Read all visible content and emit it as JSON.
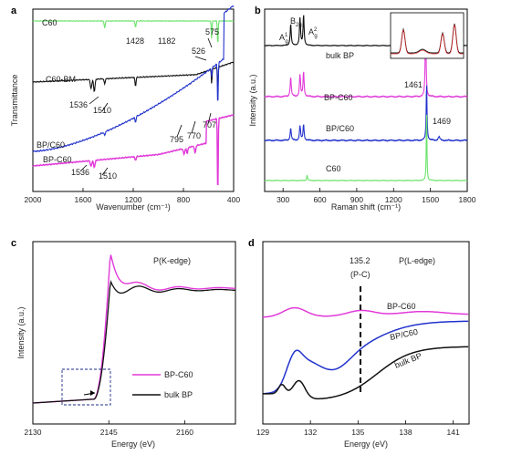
{
  "chart_data": [
    {
      "id": "a",
      "type": "line",
      "panel_label": "a",
      "xlabel": "Wavenumber (cm⁻¹)",
      "ylabel": "Transmittance",
      "xlim": [
        2000,
        400
      ],
      "x_ticks": [
        "2000",
        "1600",
        "1200",
        "800",
        "400"
      ],
      "series": [
        {
          "name": "C60",
          "color": "#6be36b",
          "offset": 0.93,
          "style": "ftir_c60"
        },
        {
          "name": "C60-BM",
          "color": "#111111",
          "offset": 0.66,
          "style": "ftir_bm"
        },
        {
          "name": "BP/C60",
          "color": "#2233cc",
          "offset": 0.33,
          "style": "ftir_bpc"
        },
        {
          "name": "BP-C60",
          "color": "#e13ad9",
          "offset": 0.17,
          "style": "ftir_bpcov"
        }
      ],
      "annotations": [
        "1428",
        "1182",
        "575",
        "526",
        "1536",
        "1510",
        "795",
        "770",
        "707",
        "1536",
        "1510"
      ]
    },
    {
      "id": "b",
      "type": "line",
      "panel_label": "b",
      "xlabel": "Raman shift (cm⁻¹)",
      "ylabel": "Intensity (a.u.)",
      "xlim": [
        150,
        1800
      ],
      "x_ticks": [
        "300",
        "600",
        "900",
        "1200",
        "1500",
        "1800"
      ],
      "series": [
        {
          "name": "bulk BP",
          "color": "#111111",
          "offset": 0.8
        },
        {
          "name": "BP-C60",
          "color": "#e13ad9",
          "offset": 0.52
        },
        {
          "name": "BP/C60",
          "color": "#2233cc",
          "offset": 0.28
        },
        {
          "name": "C60",
          "color": "#6be36b",
          "offset": 0.06
        }
      ],
      "annotations": [
        "A¹g",
        "B2g",
        "A²g",
        "1461",
        "1469"
      ]
    },
    {
      "id": "c",
      "type": "line",
      "panel_label": "c",
      "title": "P(K-edge)",
      "xlabel": "Energy (eV)",
      "ylabel": "Intensity (a.u.)",
      "xlim": [
        2130,
        2170
      ],
      "x_ticks": [
        "2130",
        "2145",
        "2160"
      ],
      "series": [
        {
          "name": "BP-C60",
          "color": "#e13ad9"
        },
        {
          "name": "bulk BP",
          "color": "#111111"
        }
      ]
    },
    {
      "id": "d",
      "type": "line",
      "panel_label": "d",
      "title": "P(L-edge)",
      "xlabel": "Energy (eV)",
      "ylabel": "Intensity (a.u.)",
      "xlim": [
        129,
        142
      ],
      "x_ticks": [
        "129",
        "132",
        "135",
        "138",
        "141"
      ],
      "series": [
        {
          "name": "BP-C60",
          "color": "#e13ad9"
        },
        {
          "name": "BP/C60",
          "color": "#2233cc"
        },
        {
          "name": "bulk BP",
          "color": "#111111"
        }
      ],
      "annotations": [
        "135.2",
        "(P-C)"
      ]
    }
  ],
  "labels": {
    "a": "a",
    "b": "b",
    "c": "c",
    "d": "d",
    "a_xlabel": "Wavenumber (cm⁻¹)",
    "a_ylabel": "Transmittance",
    "b_xlabel": "Raman shift (cm⁻¹)",
    "b_ylabel": "Intensity (a.u.)",
    "c_ylabel": "Intensity (a.u.)",
    "c_xlabel": "Energy (eV)",
    "d_xlabel": "Energy (eV)",
    "c_title": "P(K-edge)",
    "d_title": "P(L-edge)",
    "a_c60": "C60",
    "a_bm": "C60-BM",
    "a_bpc": "BP/C60",
    "a_bpcov": "BP-C60",
    "a_1428": "1428",
    "a_1182": "1182",
    "a_575": "575",
    "a_526": "526",
    "a_1536a": "1536",
    "a_1510a": "1510",
    "a_795": "795",
    "a_770": "770",
    "a_707": "707",
    "a_1536b": "1536",
    "a_1510b": "1510",
    "b_bulk": "bulk BP",
    "b_bpcov": "BP-C60",
    "b_bpc": "BP/C60",
    "b_c60": "C60",
    "b_1461": "1461",
    "b_1469": "1469",
    "c_leg1": "BP-C60",
    "c_leg2": "bulk BP",
    "d_1352": "135.2",
    "d_pc": "(P-C)",
    "d_bpcov": "BP-C60",
    "d_bpc": "BP/C60",
    "d_bulk": "bulk BP"
  }
}
